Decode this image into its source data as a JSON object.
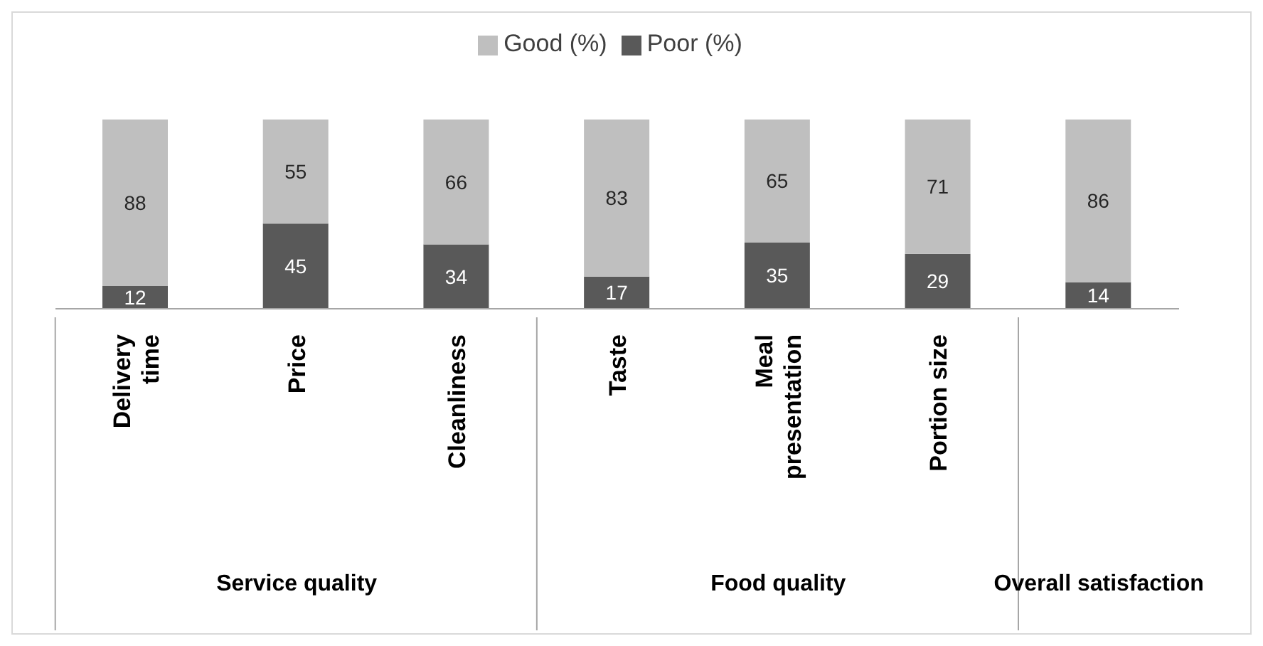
{
  "chart_data": {
    "type": "bar",
    "stacked": true,
    "legend": "top",
    "data_labels": true,
    "categories": [
      "Delivery time",
      "Price",
      "Cleanliness",
      "Taste",
      "Meal presentation",
      "Portion size",
      null
    ],
    "series": [
      {
        "name": "Poor (%)",
        "color": "#595959",
        "values": [
          12,
          45,
          34,
          17,
          35,
          29,
          14
        ]
      },
      {
        "name": "Good (%)",
        "color": "#bfbfbf",
        "values": [
          88,
          55,
          66,
          83,
          65,
          71,
          86
        ]
      }
    ],
    "annotations": [
      "Service quality",
      "Food quality",
      "Overall satisfaction"
    ]
  }
}
